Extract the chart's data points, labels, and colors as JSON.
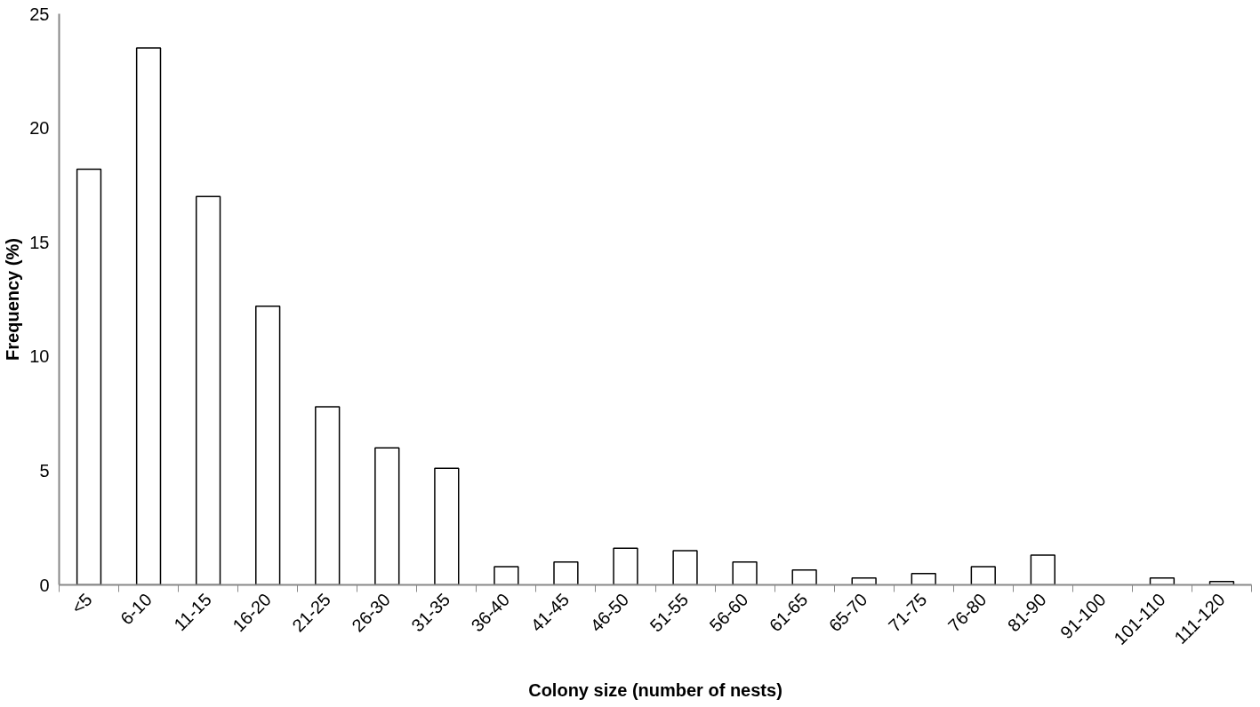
{
  "chart_data": {
    "type": "bar",
    "xlabel": "Colony size (number of nests)",
    "ylabel": "Frequency (%)",
    "categories": [
      "<5",
      "6-10",
      "11-15",
      "16-20",
      "21-25",
      "26-30",
      "31-35",
      "36-40",
      "41-45",
      "46-50",
      "51-55",
      "56-60",
      "61-65",
      "65-70",
      "71-75",
      "76-80",
      "81-90",
      "91-100",
      "101-110",
      "111-120"
    ],
    "values": [
      18.2,
      23.5,
      17.0,
      12.2,
      7.8,
      6.0,
      5.1,
      0.8,
      1.0,
      1.6,
      1.5,
      1.0,
      0.65,
      0.3,
      0.5,
      0.8,
      1.3,
      null,
      0.3,
      0.15
    ],
    "color": "#ffffff",
    "ylim": [
      0,
      25
    ],
    "yticks": [
      0,
      5,
      10,
      15,
      20,
      25
    ],
    "grid": false
  }
}
